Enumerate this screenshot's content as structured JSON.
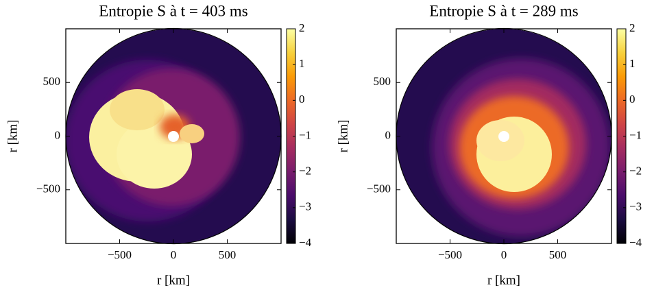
{
  "chart_data": [
    {
      "type": "image",
      "title": "Entropie S à t = 403 ms",
      "xlabel": "r [km]",
      "ylabel": "r [km]",
      "xlim": [
        -1000,
        1000
      ],
      "ylim": [
        -1000,
        1000
      ],
      "xticks": [
        {
          "value": -500,
          "label": "−500"
        },
        0,
        500
      ],
      "yticks": [
        {
          "value": -500,
          "label": "−500"
        },
        0,
        500
      ],
      "colormap": "inferno",
      "clim": [
        -4,
        2
      ],
      "cticks": [
        {
          "value": -4,
          "label": "−4"
        },
        {
          "value": -3,
          "label": "−3"
        },
        {
          "value": -2,
          "label": "−2"
        },
        {
          "value": -1,
          "label": "−1"
        },
        0,
        1,
        2
      ]
    },
    {
      "type": "image",
      "title": "Entropie S à t = 289 ms",
      "xlabel": "r [km]",
      "ylabel": "r [km]",
      "xlim": [
        -1000,
        1000
      ],
      "ylim": [
        -1000,
        1000
      ],
      "xticks": [
        {
          "value": -500,
          "label": "−500"
        },
        0,
        500
      ],
      "yticks": [
        {
          "value": -500,
          "label": "−500"
        },
        0,
        500
      ],
      "colormap": "inferno",
      "clim": [
        -4,
        2
      ],
      "cticks": [
        {
          "value": -4,
          "label": "−4"
        },
        {
          "value": -3,
          "label": "−3"
        },
        {
          "value": -2,
          "label": "−2"
        },
        {
          "value": -1,
          "label": "−1"
        },
        0,
        1,
        2
      ]
    }
  ]
}
